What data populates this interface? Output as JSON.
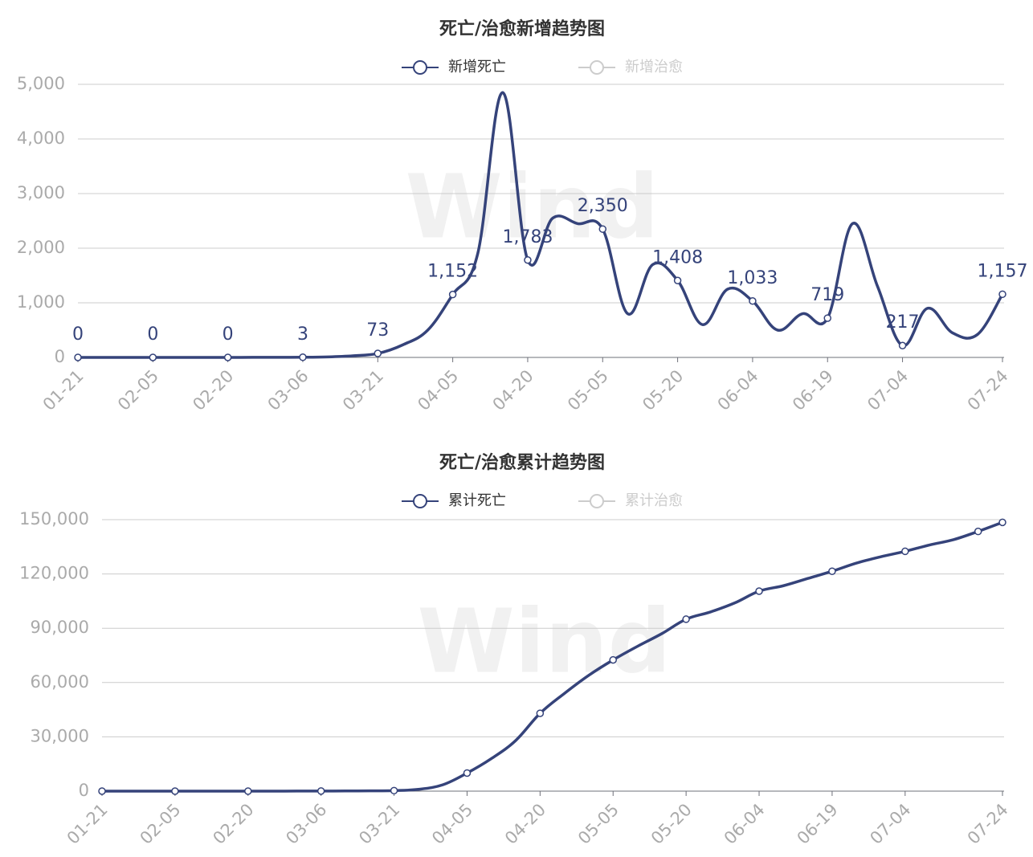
{
  "chart_data": [
    {
      "type": "line",
      "title": "死亡/治愈新增趋势图",
      "watermark": "Wind",
      "categories": [
        "01-21",
        null,
        null,
        "02-05",
        null,
        null,
        "02-20",
        null,
        null,
        "03-06",
        null,
        null,
        "03-21",
        null,
        null,
        "04-05",
        null,
        null,
        "04-20",
        null,
        null,
        "05-05",
        null,
        null,
        "05-20",
        null,
        null,
        "06-04",
        null,
        null,
        "06-19",
        null,
        null,
        "07-04",
        null,
        null,
        null,
        "07-24"
      ],
      "series": [
        {
          "name": "新增死亡",
          "color": "#35437a",
          "values": [
            0,
            0,
            0,
            0,
            0,
            0,
            0,
            1,
            2,
            3,
            10,
            30,
            73,
            230,
            500,
            1152,
            1900,
            4850,
            1783,
            2550,
            2450,
            2350,
            800,
            1700,
            1408,
            600,
            1250,
            1033,
            500,
            800,
            719,
            2450,
            1300,
            217,
            900,
            450,
            420,
            1157
          ],
          "value_labels": [
            "0",
            null,
            null,
            "0",
            null,
            null,
            "0",
            null,
            null,
            "3",
            null,
            null,
            "73",
            null,
            null,
            "1,152",
            null,
            null,
            "1,783",
            null,
            null,
            "2,350",
            null,
            null,
            "1,408",
            null,
            null,
            "1,033",
            null,
            null,
            "719",
            null,
            null,
            "217",
            null,
            null,
            null,
            "1,157"
          ]
        },
        {
          "name": "新增治愈",
          "color": "#cccccc",
          "hidden": true
        }
      ],
      "ylim": [
        0,
        5000
      ],
      "yticks": [
        0,
        {
          "value": 1000,
          "label": "1,000"
        },
        {
          "value": 2000,
          "label": "2,000"
        },
        {
          "value": 3000,
          "label": "3,000"
        },
        {
          "value": 4000,
          "label": "4,000"
        },
        {
          "value": 5000,
          "label": "5,000"
        }
      ],
      "grid": true
    },
    {
      "type": "line",
      "title": "死亡/治愈累计趋势图",
      "watermark": "Wind",
      "categories": [
        "01-21",
        null,
        null,
        "02-05",
        null,
        null,
        "02-20",
        null,
        null,
        "03-06",
        null,
        null,
        "03-21",
        null,
        null,
        "04-05",
        null,
        null,
        "04-20",
        null,
        null,
        "05-05",
        null,
        null,
        "05-20",
        null,
        null,
        "06-04",
        null,
        null,
        "06-19",
        null,
        null,
        "07-04",
        null,
        null,
        null,
        "07-24"
      ],
      "series": [
        {
          "name": "累计死亡",
          "color": "#35437a",
          "values": [
            0,
            0,
            0,
            0,
            0,
            0,
            0,
            10,
            30,
            60,
            100,
            180,
            300,
            1000,
            3500,
            10000,
            18000,
            28000,
            43000,
            54000,
            64000,
            72500,
            80000,
            87000,
            95000,
            99000,
            104000,
            110500,
            113500,
            117500,
            121500,
            126000,
            129500,
            132500,
            136000,
            139000,
            143500,
            148500
          ]
        },
        {
          "name": "累计治愈",
          "color": "#cccccc",
          "hidden": true
        }
      ],
      "ylim": [
        0,
        150000
      ],
      "yticks": [
        0,
        {
          "value": 30000,
          "label": "30,000"
        },
        {
          "value": 60000,
          "label": "60,000"
        },
        {
          "value": 90000,
          "label": "90,000"
        },
        {
          "value": 120000,
          "label": "120,000"
        },
        {
          "value": 150000,
          "label": "150,000"
        }
      ],
      "grid": true
    }
  ]
}
